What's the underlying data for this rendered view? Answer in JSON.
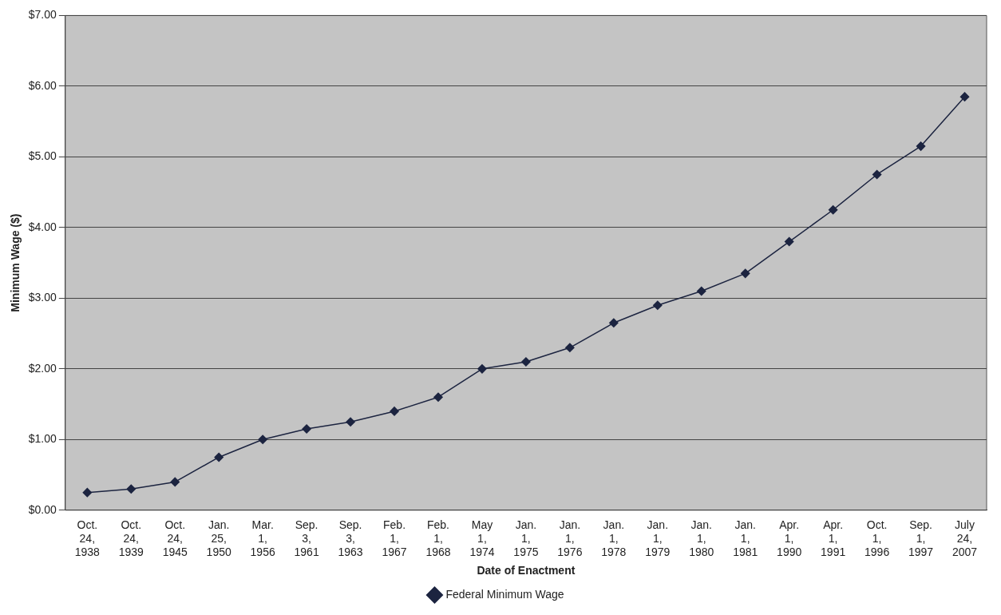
{
  "chart_data": {
    "type": "line",
    "xlabel": "Date of Enactment",
    "ylabel": "Minimum Wage ($)",
    "categories": [
      "Oct. 24, 1938",
      "Oct. 24, 1939",
      "Oct. 24, 1945",
      "Jan. 25, 1950",
      "Mar. 1, 1956",
      "Sep. 3, 1961",
      "Sep. 3, 1963",
      "Feb. 1, 1967",
      "Feb. 1, 1968",
      "May 1, 1974",
      "Jan. 1, 1975",
      "Jan. 1, 1976",
      "Jan. 1, 1978",
      "Jan. 1, 1979",
      "Jan. 1, 1980",
      "Jan. 1, 1981",
      "Apr. 1, 1990",
      "Apr. 1, 1991",
      "Oct. 1, 1996",
      "Sep. 1, 1997",
      "July 24, 2007"
    ],
    "series": [
      {
        "name": "Federal Minimum Wage",
        "color": "#1c2440",
        "values": [
          0.25,
          0.3,
          0.4,
          0.75,
          1.0,
          1.15,
          1.25,
          1.4,
          1.6,
          2.0,
          2.1,
          2.3,
          2.65,
          2.9,
          3.1,
          3.35,
          3.8,
          4.25,
          4.75,
          5.15,
          5.85
        ]
      }
    ],
    "ylim": [
      0,
      7
    ],
    "yticks": [
      {
        "value": 0,
        "label": "$0.00"
      },
      {
        "value": 1,
        "label": "$1.00"
      },
      {
        "value": 2,
        "label": "$2.00"
      },
      {
        "value": 3,
        "label": "$3.00"
      },
      {
        "value": 4,
        "label": "$4.00"
      },
      {
        "value": 5,
        "label": "$5.00"
      },
      {
        "value": 6,
        "label": "$6.00"
      },
      {
        "value": 7,
        "label": "$7.00"
      }
    ],
    "grid": "y",
    "legend": "bottom",
    "marker": "diamond",
    "line_style": "solid"
  }
}
